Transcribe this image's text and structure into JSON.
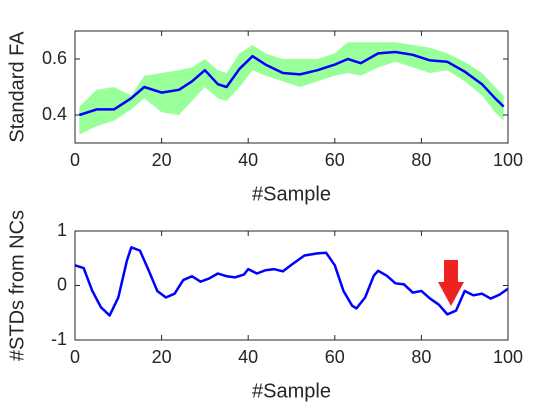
{
  "chart_data": [
    {
      "type": "line",
      "xlabel": "#Sample",
      "ylabel": "Standard FA",
      "x": [
        1,
        5,
        9,
        13,
        16,
        20,
        24,
        27,
        30,
        33,
        35,
        38,
        41,
        44,
        48,
        52,
        56,
        60,
        63,
        66,
        70,
        74,
        78,
        82,
        86,
        90,
        94,
        97,
        99
      ],
      "series": [
        {
          "color": "#0000ff",
          "values": [
            0.4,
            0.42,
            0.42,
            0.46,
            0.5,
            0.48,
            0.49,
            0.52,
            0.56,
            0.51,
            0.5,
            0.565,
            0.61,
            0.58,
            0.55,
            0.545,
            0.56,
            0.58,
            0.6,
            0.585,
            0.62,
            0.625,
            0.615,
            0.595,
            0.59,
            0.555,
            0.51,
            0.46,
            0.43
          ]
        }
      ],
      "band": {
        "color": "#99ff99",
        "upper": [
          0.43,
          0.49,
          0.5,
          0.47,
          0.54,
          0.55,
          0.56,
          0.57,
          0.6,
          0.56,
          0.55,
          0.62,
          0.65,
          0.62,
          0.6,
          0.6,
          0.6,
          0.62,
          0.66,
          0.66,
          0.66,
          0.66,
          0.65,
          0.64,
          0.62,
          0.59,
          0.55,
          0.5,
          0.47
        ],
        "lower": [
          0.33,
          0.36,
          0.38,
          0.42,
          0.46,
          0.41,
          0.4,
          0.45,
          0.5,
          0.46,
          0.45,
          0.5,
          0.56,
          0.54,
          0.52,
          0.5,
          0.52,
          0.54,
          0.55,
          0.54,
          0.57,
          0.59,
          0.57,
          0.55,
          0.56,
          0.52,
          0.47,
          0.41,
          0.38
        ]
      },
      "xlim": [
        0,
        100
      ],
      "xticks": [
        0,
        20,
        40,
        60,
        80,
        100
      ],
      "ylim": [
        0.3,
        0.7
      ],
      "yticks": [
        0.4,
        0.6
      ]
    },
    {
      "type": "line",
      "xlabel": "#Sample",
      "ylabel": "#STDs from NCs",
      "x": [
        0,
        2,
        4,
        6,
        8,
        10,
        12,
        13,
        15,
        17,
        19,
        21,
        23,
        25,
        27,
        29,
        31,
        33,
        35,
        37,
        39,
        40,
        42,
        44,
        46,
        48,
        50,
        53,
        56,
        58,
        60,
        62,
        64,
        65,
        67,
        69,
        70,
        72,
        74,
        76,
        78,
        80,
        82,
        84,
        86,
        88,
        90,
        92,
        94,
        96,
        98,
        100
      ],
      "series": [
        {
          "color": "#0000ff",
          "values": [
            0.37,
            0.32,
            -0.1,
            -0.4,
            -0.55,
            -0.22,
            0.46,
            0.7,
            0.64,
            0.28,
            -0.1,
            -0.22,
            -0.15,
            0.1,
            0.17,
            0.07,
            0.13,
            0.22,
            0.17,
            0.15,
            0.2,
            0.3,
            0.22,
            0.28,
            0.3,
            0.26,
            0.38,
            0.55,
            0.59,
            0.6,
            0.37,
            -0.1,
            -0.37,
            -0.42,
            -0.22,
            0.18,
            0.27,
            0.18,
            0.04,
            0.02,
            -0.13,
            -0.1,
            -0.24,
            -0.35,
            -0.53,
            -0.46,
            -0.1,
            -0.18,
            -0.15,
            -0.24,
            -0.17,
            -0.06
          ]
        }
      ],
      "xlim": [
        0,
        100
      ],
      "xticks": [
        0,
        20,
        40,
        60,
        80,
        100
      ],
      "ylim": [
        -1,
        1
      ],
      "yticks": [
        -1,
        0,
        1
      ]
    }
  ]
}
